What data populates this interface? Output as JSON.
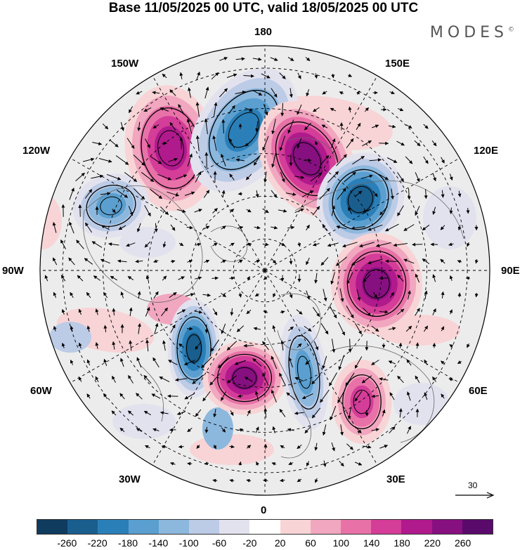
{
  "header": {
    "title": "Base 11/05/2025 00 UTC, valid 18/05/2025 00 UTC",
    "brand": "MODES",
    "brand_mark": "©"
  },
  "map": {
    "projection": "north-polar-stereographic",
    "longitude_labels": {
      "top": "180",
      "bottom": "0",
      "left": "90W",
      "right": "90E",
      "upper_left_a": "150W",
      "upper_left_b": "120W",
      "upper_right_a": "150E",
      "upper_right_b": "120E",
      "lower_left_a": "60W",
      "lower_left_b": "30W",
      "lower_right_a": "60E",
      "lower_right_b": "30E"
    },
    "reference_vector": "30",
    "anomaly_centers": [
      {
        "sign": "positive",
        "intensity": 200,
        "region": "upper-left"
      },
      {
        "sign": "negative",
        "intensity": 200,
        "region": "top"
      },
      {
        "sign": "positive",
        "intensity": 240,
        "region": "upper-right"
      },
      {
        "sign": "negative",
        "intensity": 220,
        "region": "right-upper"
      },
      {
        "sign": "positive",
        "intensity": 240,
        "region": "right"
      },
      {
        "sign": "negative",
        "intensity": 220,
        "region": "lower-left"
      },
      {
        "sign": "positive",
        "intensity": 240,
        "region": "bottom"
      },
      {
        "sign": "negative",
        "intensity": 160,
        "region": "lower-right"
      },
      {
        "sign": "positive",
        "intensity": 140,
        "region": "lower-right-outer"
      },
      {
        "sign": "negative",
        "intensity": 140,
        "region": "left"
      }
    ]
  },
  "colorbar": {
    "colors": [
      "#0f3b5f",
      "#1a5e8e",
      "#2b7fb8",
      "#5a9fcf",
      "#8db8de",
      "#bccbe6",
      "#e2e2ef",
      "#ffffff",
      "#f8d4d6",
      "#f1a7bf",
      "#e872a8",
      "#d43d98",
      "#b01a8c",
      "#86107f",
      "#5a0a6b"
    ],
    "tick_labels": [
      "-260",
      "-220",
      "-180",
      "-140",
      "-100",
      "-60",
      "-20",
      "20",
      "60",
      "100",
      "140",
      "180",
      "220",
      "260"
    ]
  }
}
